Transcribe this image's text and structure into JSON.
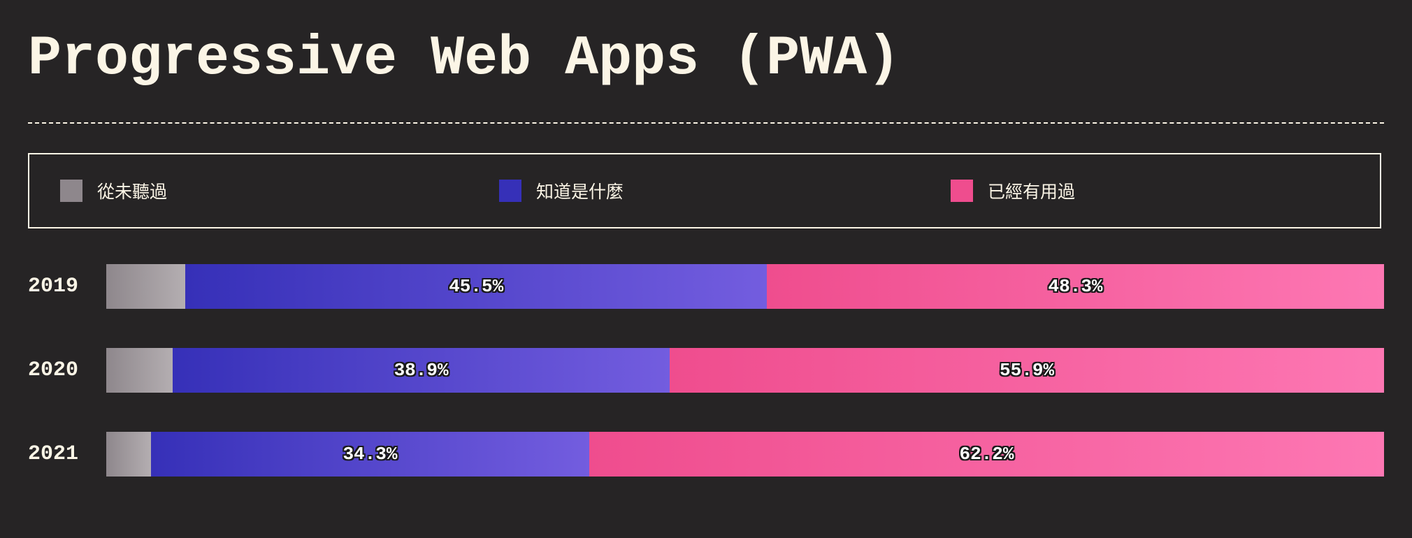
{
  "chart_data": {
    "type": "bar",
    "orientation": "horizontal",
    "stacked": "percent",
    "title": "Progressive Web Apps (PWA)",
    "categories": [
      "2019",
      "2020",
      "2021"
    ],
    "series": [
      {
        "name": "從未聽過",
        "values": [
          6.2,
          5.2,
          3.5
        ],
        "color": "#8e878c",
        "color_end": "#b4aeb1"
      },
      {
        "name": "知道是什麼",
        "values": [
          45.5,
          38.9,
          34.3
        ],
        "color": "#3630b8",
        "color_end": "#735ddf"
      },
      {
        "name": "已經有用過",
        "values": [
          48.3,
          55.9,
          62.2
        ],
        "color": "#ef4d8e",
        "color_end": "#fd77b3"
      }
    ],
    "legend_position": "top",
    "value_labels": {
      "2019": [
        "",
        "45.5%",
        "48.3%"
      ],
      "2020": [
        "",
        "38.9%",
        "55.9%"
      ],
      "2021": [
        "",
        "34.3%",
        "62.2%"
      ]
    }
  }
}
